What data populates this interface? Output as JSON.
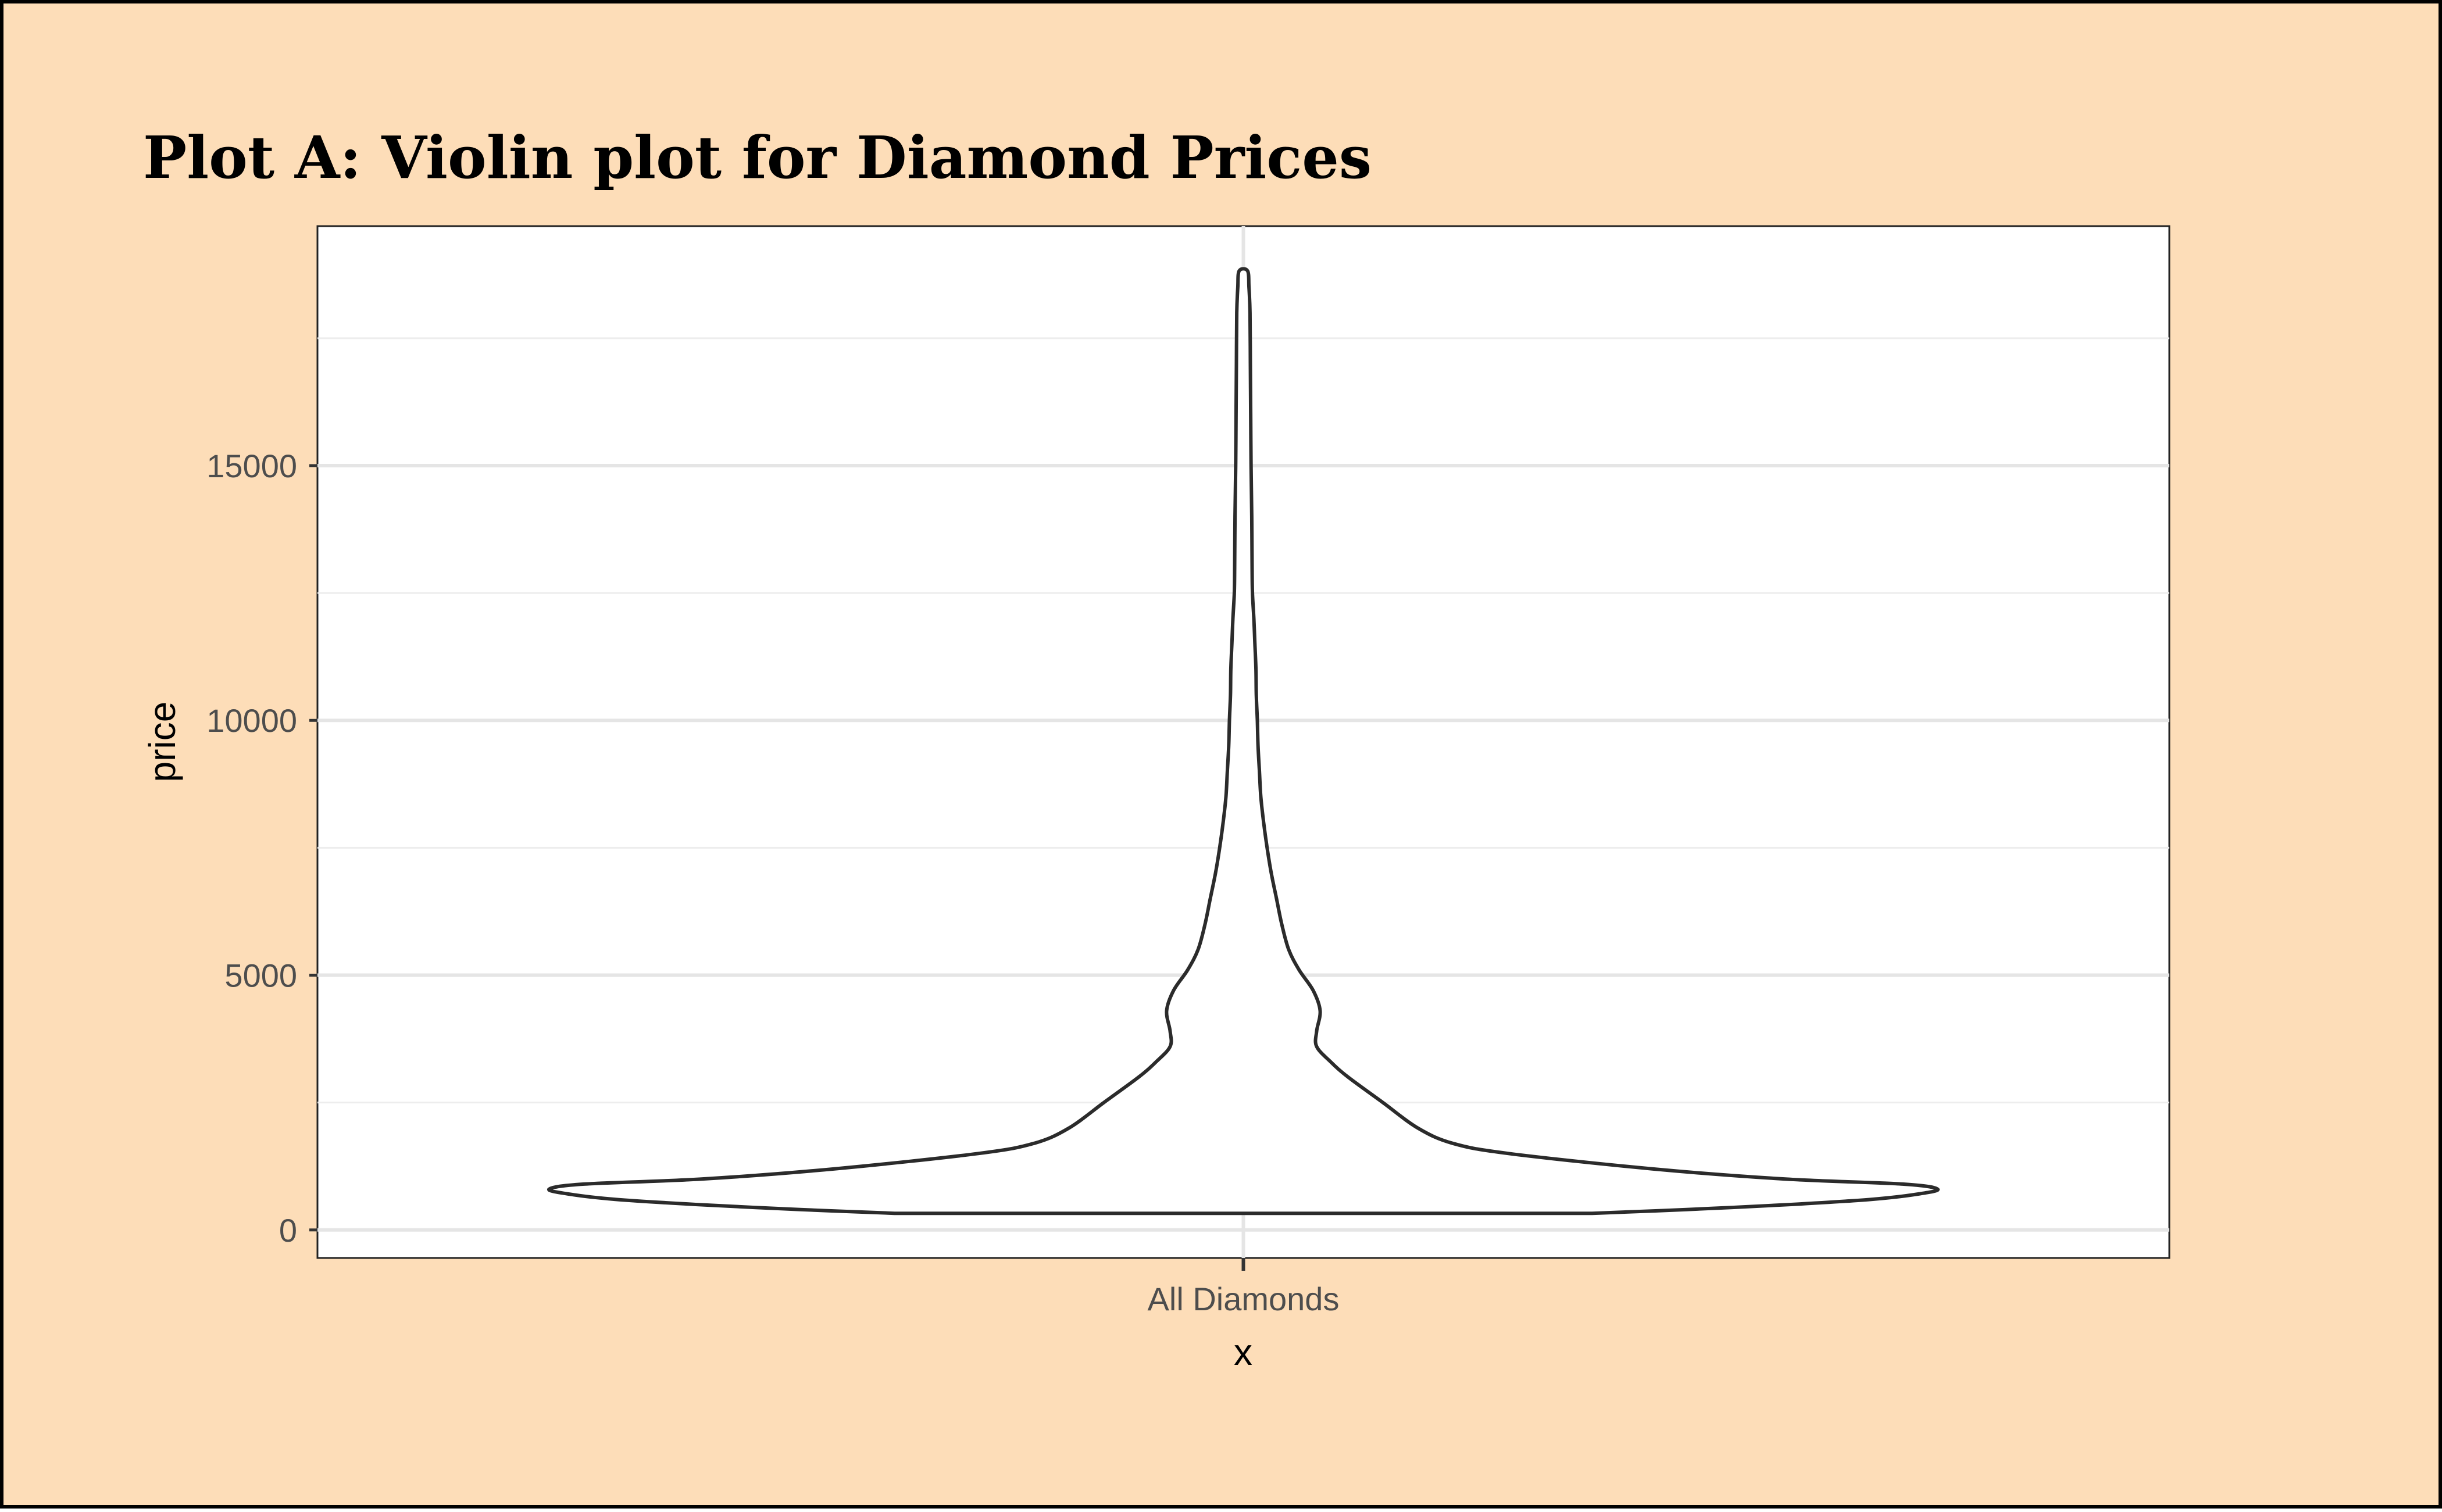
{
  "chart_data": {
    "type": "violin",
    "title": "Plot A: Violin plot for Diamond Prices",
    "xlabel": "x",
    "ylabel": "price",
    "categories": [
      "All Diamonds"
    ],
    "ylim": [
      -550,
      19700
    ],
    "yticks": [
      0,
      5000,
      10000,
      15000
    ],
    "ytick_labels": [
      "0",
      "5000",
      "10000",
      "15000"
    ],
    "grid": true,
    "density": {
      "category": "All Diamonds",
      "y_min": 326,
      "y_max": 18823,
      "profile": [
        [
          326,
          1.0
        ],
        [
          400,
          1.27
        ],
        [
          500,
          1.57
        ],
        [
          600,
          1.8
        ],
        [
          700,
          1.93
        ],
        [
          800,
          1.99
        ],
        [
          900,
          1.89
        ],
        [
          1000,
          1.55
        ],
        [
          1200,
          1.17
        ],
        [
          1500,
          0.76
        ],
        [
          1700,
          0.6
        ],
        [
          2000,
          0.5
        ],
        [
          2500,
          0.4
        ],
        [
          3000,
          0.3
        ],
        [
          3300,
          0.25
        ],
        [
          3600,
          0.21
        ],
        [
          3900,
          0.21
        ],
        [
          4300,
          0.22
        ],
        [
          4700,
          0.2
        ],
        [
          5100,
          0.16
        ],
        [
          5500,
          0.13
        ],
        [
          6000,
          0.11
        ],
        [
          6500,
          0.095
        ],
        [
          7000,
          0.08
        ],
        [
          7500,
          0.068
        ],
        [
          8000,
          0.058
        ],
        [
          8500,
          0.05
        ],
        [
          9000,
          0.046
        ],
        [
          9500,
          0.042
        ],
        [
          10000,
          0.04
        ],
        [
          10500,
          0.037
        ],
        [
          11000,
          0.036
        ],
        [
          11500,
          0.033
        ],
        [
          12000,
          0.03
        ],
        [
          12500,
          0.026
        ],
        [
          13000,
          0.025
        ],
        [
          14000,
          0.024
        ],
        [
          15000,
          0.022
        ],
        [
          16000,
          0.021
        ],
        [
          17000,
          0.02
        ],
        [
          18000,
          0.019
        ],
        [
          18500,
          0.016
        ],
        [
          18823,
          0.012
        ]
      ]
    }
  },
  "colors": {
    "background": "#FDDDB8",
    "panel": "#FFFFFF",
    "grid_major": "#E5E5E5",
    "grid_minor": "#EDEDED",
    "violin_stroke": "#2B2B2B",
    "violin_fill": "#FFFFFF",
    "text": "#000000",
    "tick_text": "#4D4D4D"
  }
}
